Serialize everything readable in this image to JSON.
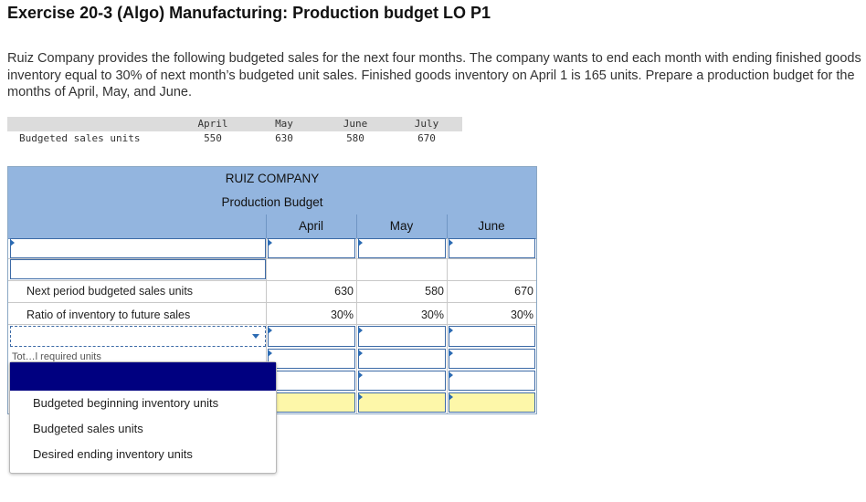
{
  "title": "Exercise 20-3 (Algo) Manufacturing: Production budget LO P1",
  "intro": "Ruiz Company provides the following budgeted sales for the next four months. The company wants to end each month with ending finished goods inventory equal to 30% of next month’s budgeted unit sales. Finished goods inventory on April 1 is 165 units. Prepare a production budget for the months of April, May, and June.",
  "sales": {
    "row_label": "Budgeted sales units",
    "months": [
      "April",
      "May",
      "June",
      "July"
    ],
    "values": [
      "550",
      "630",
      "580",
      "670"
    ]
  },
  "budget": {
    "company": "RUIZ COMPANY",
    "name": "Production Budget",
    "columns": [
      "April",
      "May",
      "June"
    ],
    "next_sales_label": "Next period budgeted sales units",
    "next_sales": [
      "630",
      "580",
      "670"
    ],
    "ratio_label": "Ratio of inventory to future sales",
    "ratio": [
      "30%",
      "30%",
      "30%"
    ],
    "hidden_label_fragment": "Tot…l required units"
  },
  "dropdown": {
    "options": [
      "Budgeted beginning inventory units",
      "Budgeted sales units",
      "Desired ending inventory units"
    ]
  },
  "colors": {
    "header_blue": "#93b5df",
    "highlight_yellow": "#fdf7a9",
    "selected_navy": "#000080"
  }
}
